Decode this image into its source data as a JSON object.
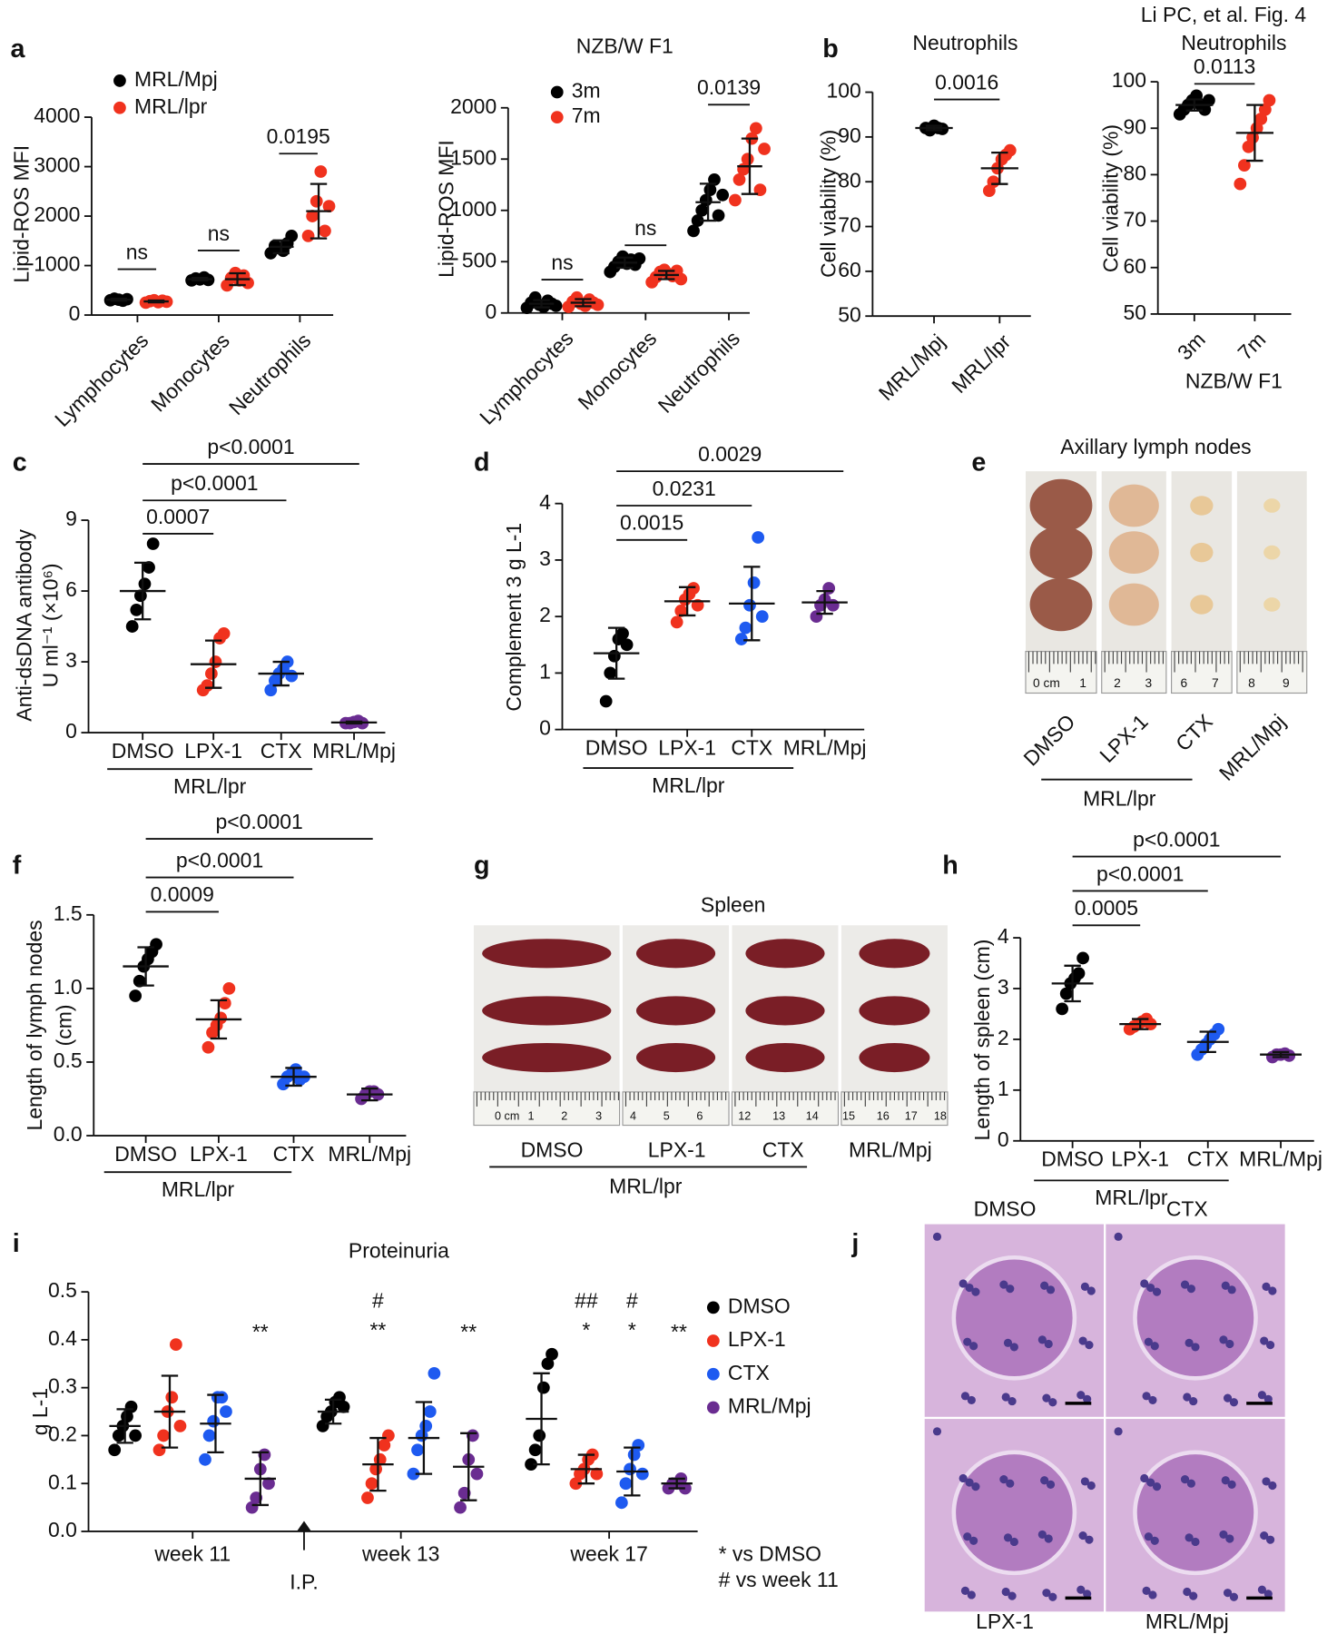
{
  "chart_data": [
    {
      "type": "dot",
      "panel": "a",
      "ylabel": "Lipid-ROS MFI",
      "categories": [
        "Lymphocytes",
        "Monocytes",
        "Neutrophils"
      ],
      "series": [
        {
          "name": "MRL/Mpj",
          "color": "#000000",
          "points": [
            [
              300,
              330,
              310,
              290,
              320
            ],
            [
              700,
              740,
              720,
              760,
              710
            ],
            [
              1250,
              1400,
              1350,
              1300,
              1450,
              1600
            ]
          ],
          "mean": [
            310,
            725,
            1380
          ],
          "sd": [
            20,
            25,
            130
          ]
        },
        {
          "name": "MRL/lpr",
          "color": "#f0321e",
          "points": [
            [
              250,
              280,
              300,
              260,
              290,
              270
            ],
            [
              600,
              750,
              850,
              700,
              800,
              650
            ],
            [
              1600,
              2000,
              2300,
              2900,
              1700,
              2200
            ]
          ],
          "mean": [
            275,
            725,
            2100
          ],
          "sd": [
            20,
            120,
            550
          ]
        }
      ],
      "ylim": [
        0,
        4000
      ],
      "yticks": [
        0,
        1000,
        2000,
        3000,
        4000
      ],
      "comparisons": [
        "ns",
        "ns",
        "0.0195"
      ]
    },
    {
      "type": "dot",
      "title": "NZB/W F1",
      "ylabel": "Lipid-ROS MFI",
      "categories": [
        "Lymphocytes",
        "Monocytes",
        "Neutrophils"
      ],
      "series": [
        {
          "name": "3m",
          "color": "#000000",
          "points": [
            [
              50,
              100,
              150,
              80,
              60,
              120,
              90,
              70
            ],
            [
              400,
              450,
              500,
              550,
              480,
              520,
              470,
              530
            ],
            [
              800,
              900,
              1000,
              1100,
              1200,
              1300,
              950,
              1150
            ]
          ],
          "mean": [
            90,
            490,
            1080
          ],
          "sd": [
            35,
            50,
            180
          ]
        },
        {
          "name": "7m",
          "color": "#f0321e",
          "points": [
            [
              60,
              110,
              150,
              90,
              70,
              130,
              100,
              80
            ],
            [
              300,
              350,
              400,
              420,
              380,
              360,
              410,
              330
            ],
            [
              1100,
              1300,
              1400,
              1500,
              1700,
              1800,
              1200,
              1600
            ]
          ],
          "mean": [
            100,
            370,
            1430
          ],
          "sd": [
            35,
            40,
            270
          ]
        }
      ],
      "ylim": [
        0,
        2000
      ],
      "yticks": [
        0,
        500,
        1000,
        1500,
        2000
      ],
      "comparisons": [
        "ns",
        "ns",
        "0.0139"
      ]
    },
    {
      "type": "dot",
      "panel": "b",
      "title": "Neutrophils",
      "ylabel": "Cell viability (%)",
      "categories": [
        "MRL/Mpj",
        "MRL/lpr"
      ],
      "colors": [
        "#000000",
        "#f0321e"
      ],
      "points": [
        [
          92,
          91.5,
          92.5,
          92,
          91.8
        ],
        [
          78,
          80,
          83,
          85,
          86,
          87
        ]
      ],
      "mean": [
        92,
        83
      ],
      "sd": [
        0.5,
        3.5
      ],
      "ylim": [
        50,
        100
      ],
      "yticks": [
        50,
        60,
        70,
        80,
        90,
        100
      ],
      "comparisons": [
        "0.0016"
      ]
    },
    {
      "type": "dot",
      "header": "Li PC, et al. Fig. 4",
      "title": "Neutrophils",
      "ylabel": "Cell viability (%)",
      "xlabel": "NZB/W F1",
      "categories": [
        "3m",
        "7m"
      ],
      "colors": [
        "#000000",
        "#f0321e"
      ],
      "points": [
        [
          93,
          94,
          95,
          96,
          97,
          95,
          94,
          96
        ],
        [
          78,
          82,
          86,
          88,
          90,
          92,
          94,
          96
        ]
      ],
      "mean": [
        95,
        89
      ],
      "sd": [
        1.2,
        6
      ],
      "ylim": [
        50,
        100
      ],
      "yticks": [
        50,
        60,
        70,
        80,
        90,
        100
      ],
      "comparisons": [
        "0.0113"
      ]
    },
    {
      "type": "dot",
      "panel": "c",
      "ylabel": [
        "Anti-dsDNA antibody",
        "U ml⁻¹ (×10⁶)"
      ],
      "categories": [
        "DMSO",
        "LPX-1",
        "CTX",
        "MRL/Mpj"
      ],
      "group_label": "MRL/lpr",
      "colors": [
        "#000000",
        "#f0321e",
        "#1e5af0",
        "#6a2c91"
      ],
      "points": [
        [
          4.5,
          5.2,
          5.8,
          6.3,
          7.0,
          8.0
        ],
        [
          1.8,
          2.0,
          2.5,
          3.0,
          4.0,
          4.2
        ],
        [
          1.8,
          2.2,
          2.5,
          2.7,
          3.0,
          2.4
        ],
        [
          0.4,
          0.4,
          0.45,
          0.5,
          0.4
        ]
      ],
      "mean": [
        6.0,
        2.9,
        2.5,
        0.43
      ],
      "sd": [
        1.2,
        1.0,
        0.5,
        0.04
      ],
      "ylim": [
        0,
        9
      ],
      "yticks": [
        0,
        3,
        6,
        9
      ],
      "comparisons": [
        "0.0007",
        "p<0.0001",
        "p<0.0001"
      ]
    },
    {
      "type": "dot",
      "panel": "d",
      "ylabel": "Complement 3 g L-1",
      "categories": [
        "DMSO",
        "LPX-1",
        "CTX",
        "MRL/Mpj"
      ],
      "group_label": "MRL/lpr",
      "colors": [
        "#000000",
        "#f0321e",
        "#1e5af0",
        "#6a2c91"
      ],
      "points": [
        [
          0.5,
          1.0,
          1.3,
          1.6,
          1.7,
          1.5
        ],
        [
          1.9,
          2.1,
          2.3,
          2.4,
          2.5,
          2.2
        ],
        [
          1.6,
          1.8,
          2.2,
          2.6,
          3.4,
          2.0
        ],
        [
          2.0,
          2.2,
          2.3,
          2.5,
          2.2
        ]
      ],
      "mean": [
        1.35,
        2.27,
        2.23,
        2.25
      ],
      "sd": [
        0.45,
        0.25,
        0.65,
        0.2
      ],
      "ylim": [
        0,
        4
      ],
      "yticks": [
        0,
        1,
        2,
        3,
        4
      ],
      "comparisons": [
        "0.0015",
        "0.0231",
        "0.0029"
      ]
    },
    {
      "type": "dot",
      "panel": "f",
      "ylabel": [
        "Length of lymph nodes",
        "(cm)"
      ],
      "categories": [
        "DMSO",
        "LPX-1",
        "CTX",
        "MRL/Mpj"
      ],
      "group_label": "MRL/lpr",
      "colors": [
        "#000000",
        "#f0321e",
        "#1e5af0",
        "#6a2c91"
      ],
      "points": [
        [
          0.95,
          1.05,
          1.15,
          1.2,
          1.25,
          1.3
        ],
        [
          0.6,
          0.7,
          0.75,
          0.8,
          0.9,
          1.0
        ],
        [
          0.35,
          0.4,
          0.42,
          0.45,
          0.38,
          0.4
        ],
        [
          0.25,
          0.28,
          0.3,
          0.3,
          0.28
        ]
      ],
      "mean": [
        1.15,
        0.79,
        0.4,
        0.28
      ],
      "sd": [
        0.13,
        0.13,
        0.06,
        0.04
      ],
      "ylim": [
        0,
        1.5
      ],
      "yticks": [
        {
          "value": 0,
          "label": "0.0"
        },
        0.5,
        {
          "value": 1,
          "label": "1.0"
        },
        1.5
      ],
      "comparisons": [
        "0.0009",
        "p<0.0001",
        "p<0.0001"
      ]
    },
    {
      "type": "dot",
      "panel": "h",
      "ylabel": "Length of spleen (cm)",
      "categories": [
        "DMSO",
        "LPX-1",
        "CTX",
        "MRL/Mpj"
      ],
      "group_label": "MRL/lpr",
      "colors": [
        "#000000",
        "#f0321e",
        "#1e5af0",
        "#6a2c91"
      ],
      "points": [
        [
          2.6,
          2.9,
          3.1,
          3.2,
          3.3,
          3.6
        ],
        [
          2.2,
          2.25,
          2.3,
          2.35,
          2.4,
          2.3
        ],
        [
          1.7,
          1.8,
          1.9,
          2.0,
          2.1,
          2.2
        ],
        [
          1.65,
          1.7,
          1.7,
          1.72,
          1.68
        ]
      ],
      "mean": [
        3.1,
        2.3,
        1.95,
        1.7
      ],
      "sd": [
        0.35,
        0.1,
        0.2,
        0.05
      ],
      "ylim": [
        0,
        4
      ],
      "yticks": [
        0,
        1,
        2,
        3,
        4
      ],
      "comparisons": [
        "0.0005",
        "p<0.0001",
        "p<0.0001"
      ]
    },
    {
      "type": "dot",
      "panel": "i",
      "title": "Proteinuria",
      "ylabel": "g L-1",
      "categories": [
        "week 11",
        "week 13",
        "week 17"
      ],
      "series": [
        {
          "name": "DMSO",
          "color": "#000000",
          "points": [
            [
              0.17,
              0.2,
              0.22,
              0.24,
              0.26,
              0.2
            ],
            [
              0.22,
              0.24,
              0.25,
              0.27,
              0.28,
              0.26
            ],
            [
              0.14,
              0.17,
              0.2,
              0.3,
              0.35,
              0.37
            ]
          ],
          "mean": [
            0.22,
            0.25,
            0.235
          ],
          "sd": [
            0.035,
            0.025,
            0.095
          ]
        },
        {
          "name": "LPX-1",
          "color": "#f0321e",
          "points": [
            [
              0.17,
              0.2,
              0.25,
              0.28,
              0.39,
              0.22
            ],
            [
              0.07,
              0.1,
              0.13,
              0.15,
              0.18,
              0.2
            ],
            [
              0.1,
              0.12,
              0.13,
              0.15,
              0.16,
              0.12
            ]
          ],
          "mean": [
            0.25,
            0.14,
            0.13
          ],
          "sd": [
            0.075,
            0.055,
            0.03
          ]
        },
        {
          "name": "CTX",
          "color": "#1e5af0",
          "points": [
            [
              0.15,
              0.2,
              0.23,
              0.28,
              0.28,
              0.25
            ],
            [
              0.12,
              0.17,
              0.2,
              0.22,
              0.25,
              0.33
            ],
            [
              0.06,
              0.1,
              0.13,
              0.16,
              0.18,
              0.12
            ]
          ],
          "mean": [
            0.225,
            0.195,
            0.125
          ],
          "sd": [
            0.06,
            0.075,
            0.05
          ]
        },
        {
          "name": "MRL/Mpj",
          "color": "#6a2c91",
          "points": [
            [
              0.05,
              0.07,
              0.13,
              0.16,
              0.1
            ],
            [
              0.05,
              0.08,
              0.15,
              0.2,
              0.12
            ],
            [
              0.09,
              0.1,
              0.1,
              0.11,
              0.09
            ]
          ],
          "mean": [
            0.11,
            0.135,
            0.1
          ],
          "sd": [
            0.055,
            0.07,
            0.01
          ]
        }
      ],
      "ylim": [
        0,
        0.5
      ],
      "yticks": [
        {
          "value": 0,
          "label": "0.0"
        },
        0.1,
        0.2,
        0.3,
        0.4,
        0.5
      ],
      "annotations": [
        "**",
        "#",
        "**",
        "**",
        "##",
        "*",
        "#",
        "*",
        "**"
      ],
      "arrow_label": "I.P.",
      "notes": [
        "* vs DMSO",
        "# vs week 11"
      ]
    }
  ],
  "photos": [
    {
      "panel": "e",
      "title": "Axillary lymph nodes",
      "labels": [
        "DMSO",
        "LPX-1",
        "CTX",
        "MRL/Mpj"
      ],
      "group_label": "MRL/lpr",
      "ruler_labels": [
        "0 cm",
        "1",
        "2",
        "3",
        "6",
        "7",
        "8",
        "9"
      ]
    },
    {
      "panel": "g",
      "title": "Spleen",
      "labels": [
        "DMSO",
        "LPX-1",
        "CTX",
        "MRL/Mpj"
      ],
      "group_label": "MRL/lpr",
      "ruler_labels": [
        "0 cm",
        "1",
        "2",
        "3",
        "4",
        "5",
        "6",
        "12",
        "13",
        "14",
        "15",
        "16",
        "17",
        "18"
      ]
    },
    {
      "panel": "j",
      "labels": [
        "DMSO",
        "CTX",
        "LPX-1",
        "MRL/Mpj"
      ]
    }
  ]
}
